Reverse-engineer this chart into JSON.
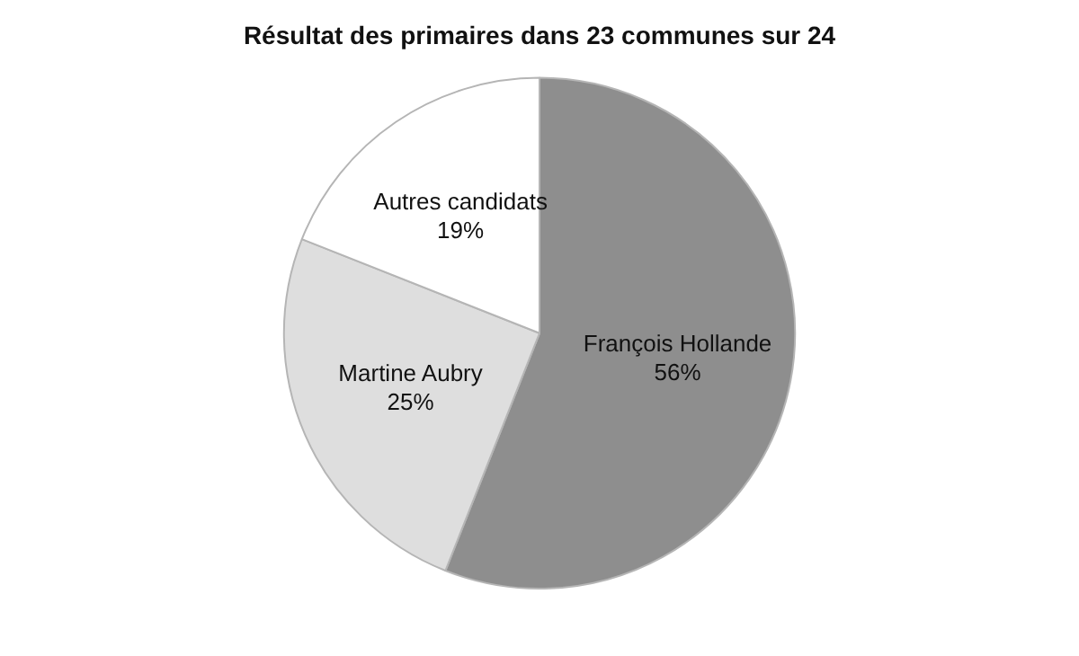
{
  "chart_data": {
    "type": "pie",
    "title": "Résultat des primaires dans 23 communes sur 24",
    "categories": [
      "François Hollande",
      "Martine Aubry",
      "Autres candidats"
    ],
    "values": [
      56,
      25,
      19
    ],
    "colors": [
      "#8e8e8e",
      "#dedede",
      "#ffffff"
    ],
    "value_labels": [
      "56%",
      "25%",
      "19%"
    ],
    "legend": false
  }
}
